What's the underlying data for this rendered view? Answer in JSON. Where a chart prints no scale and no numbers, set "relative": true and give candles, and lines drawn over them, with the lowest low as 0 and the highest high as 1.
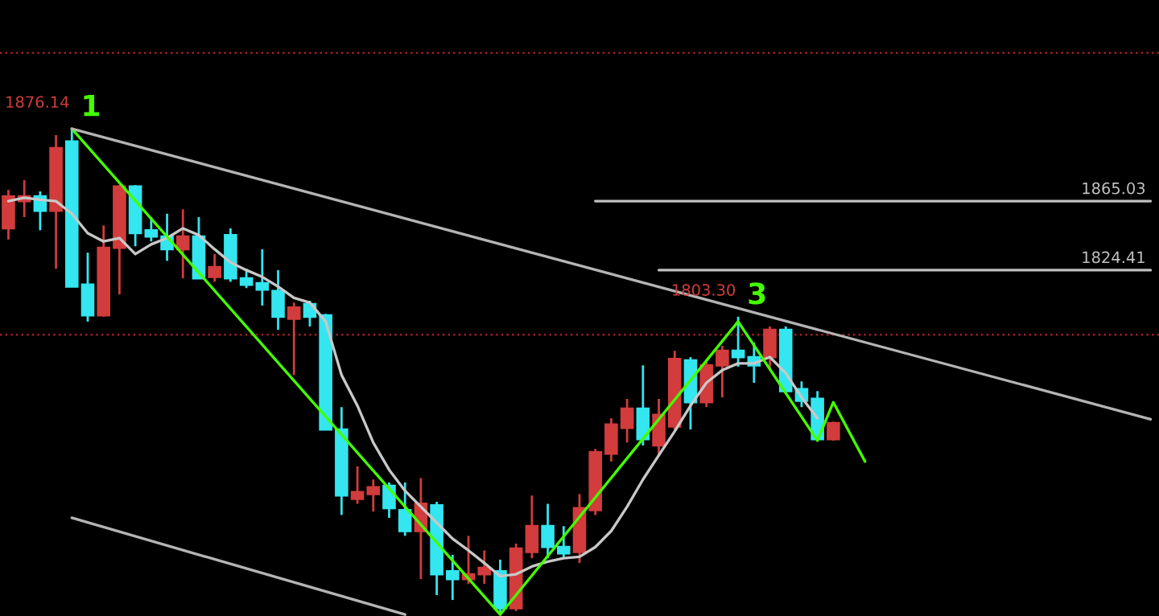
{
  "chart_data": {
    "type": "candlestick",
    "relative": true,
    "ylim": [
      -0.003,
      1.265
    ],
    "categories": [
      null,
      null,
      null,
      null,
      null,
      null,
      null,
      null,
      null,
      null,
      null,
      null,
      null,
      null,
      null,
      null,
      null,
      null,
      null,
      null,
      null,
      null,
      null,
      null,
      null,
      null,
      null,
      null,
      null,
      null,
      null,
      null,
      null,
      null,
      null,
      null,
      null,
      null,
      null,
      null,
      null,
      null,
      null,
      null,
      null,
      null,
      null,
      null,
      null,
      null,
      null,
      null,
      null,
      null,
      null,
      null,
      null,
      null,
      null,
      null,
      null,
      null,
      null,
      null,
      null,
      null,
      null,
      null,
      null,
      null,
      null,
      null,
      null
    ],
    "ohlc": [
      [
        0.795,
        0.874,
        0.772,
        0.861
      ],
      [
        0.851,
        0.894,
        0.818,
        0.861
      ],
      [
        0.861,
        0.871,
        0.791,
        0.831
      ],
      [
        0.831,
        0.987,
        0.712,
        0.96
      ],
      [
        0.974,
        1.0,
        0.675,
        0.675
      ],
      [
        0.679,
        0.745,
        0.603,
        0.616
      ],
      [
        0.616,
        0.801,
        0.613,
        0.755
      ],
      [
        0.755,
        0.884,
        0.659,
        0.881
      ],
      [
        0.881,
        0.884,
        0.758,
        0.785
      ],
      [
        0.791,
        0.818,
        0.768,
        0.778
      ],
      [
        0.778,
        0.825,
        0.728,
        0.752
      ],
      [
        0.752,
        0.834,
        0.692,
        0.778
      ],
      [
        0.778,
        0.818,
        0.692,
        0.692
      ],
      [
        0.695,
        0.742,
        0.685,
        0.715
      ],
      [
        0.781,
        0.795,
        0.685,
        0.692
      ],
      [
        0.692,
        0.712,
        0.672,
        0.679
      ],
      [
        0.682,
        0.752,
        0.636,
        0.669
      ],
      [
        0.666,
        0.709,
        0.586,
        0.613
      ],
      [
        0.609,
        0.642,
        0.493,
        0.632
      ],
      [
        0.639,
        0.646,
        0.593,
        0.613
      ],
      [
        0.616,
        0.619,
        0.381,
        0.381
      ],
      [
        0.381,
        0.427,
        0.205,
        0.245
      ],
      [
        0.238,
        0.305,
        0.228,
        0.252
      ],
      [
        0.248,
        0.278,
        0.212,
        0.262
      ],
      [
        0.265,
        0.272,
        0.199,
        0.219
      ],
      [
        0.215,
        0.272,
        0.162,
        0.172
      ],
      [
        0.172,
        0.281,
        0.073,
        0.228
      ],
      [
        0.225,
        0.232,
        0.04,
        0.083
      ],
      [
        0.089,
        0.123,
        0.03,
        0.073
      ],
      [
        0.073,
        0.162,
        0.063,
        0.083
      ],
      [
        0.083,
        0.132,
        0.063,
        0.096
      ],
      [
        0.089,
        0.113,
        0.0,
        0.013
      ],
      [
        0.013,
        0.146,
        0.007,
        0.136
      ],
      [
        0.129,
        0.245,
        0.116,
        0.182
      ],
      [
        0.182,
        0.228,
        0.116,
        0.139
      ],
      [
        0.139,
        0.182,
        0.116,
        0.126
      ],
      [
        0.129,
        0.248,
        0.106,
        0.219
      ],
      [
        0.215,
        0.341,
        0.205,
        0.334
      ],
      [
        0.331,
        0.404,
        0.315,
        0.391
      ],
      [
        0.384,
        0.444,
        0.354,
        0.424
      ],
      [
        0.424,
        0.513,
        0.348,
        0.361
      ],
      [
        0.348,
        0.444,
        0.328,
        0.411
      ],
      [
        0.387,
        0.543,
        0.381,
        0.526
      ],
      [
        0.523,
        0.53,
        0.381,
        0.437
      ],
      [
        0.437,
        0.52,
        0.427,
        0.513
      ],
      [
        0.513,
        0.553,
        0.447,
        0.543
      ],
      [
        0.543,
        0.613,
        0.51,
        0.53
      ],
      [
        0.53,
        0.56,
        0.477,
        0.513
      ],
      [
        0.53,
        0.593,
        0.503,
        0.586
      ],
      [
        0.586,
        0.593,
        0.454,
        0.46
      ],
      [
        0.464,
        0.48,
        0.427,
        0.44
      ],
      [
        0.444,
        0.46,
        0.361,
        0.361
      ],
      [
        0.361,
        0.397,
        0.358,
        0.394
      ],
      null,
      null,
      null,
      null,
      null,
      null,
      null,
      null,
      null,
      null,
      null,
      null,
      null,
      null,
      null,
      null,
      null,
      null,
      null,
      null
    ],
    "colors": [
      "#d23c3c",
      "#d23c3c",
      "#33e6f0",
      "#d23c3c",
      "#33e6f0",
      "#33e6f0",
      "#d23c3c",
      "#d23c3c",
      "#33e6f0",
      "#33e6f0",
      "#33e6f0",
      "#d23c3c",
      "#33e6f0",
      "#d23c3c",
      "#33e6f0",
      "#33e6f0",
      "#33e6f0",
      "#33e6f0",
      "#d23c3c",
      "#33e6f0",
      "#33e6f0",
      "#33e6f0",
      "#d23c3c",
      "#d23c3c",
      "#33e6f0",
      "#33e6f0",
      "#d23c3c",
      "#33e6f0",
      "#33e6f0",
      "#d23c3c",
      "#d23c3c",
      "#33e6f0",
      "#d23c3c",
      "#d23c3c",
      "#33e6f0",
      "#33e6f0",
      "#d23c3c",
      "#d23c3c",
      "#d23c3c",
      "#d23c3c",
      "#33e6f0",
      "#d23c3c",
      "#d23c3c",
      "#33e6f0",
      "#d23c3c",
      "#d23c3c",
      "#33e6f0",
      "#33e6f0",
      "#d23c3c",
      "#33e6f0",
      "#33e6f0",
      "#33e6f0",
      "#d23c3c",
      null,
      null,
      null,
      null,
      null,
      null,
      null,
      null,
      null,
      null,
      null,
      null,
      null,
      null,
      null,
      null,
      null,
      null,
      null,
      null
    ],
    "annotations": [
      "1876.14",
      {
        "text": "1",
        "y": 1.0
      },
      "1803.30",
      {
        "text": "3",
        "y": 0.613
      }
    ],
    "series": [
      {
        "type": "line",
        "color": "#c8c8c8",
        "values": [
          0.851,
          0.858,
          0.854,
          0.851,
          0.825,
          0.785,
          0.768,
          0.775,
          0.742,
          0.762,
          0.775,
          0.795,
          0.781,
          0.752,
          0.725,
          0.709,
          0.695,
          0.675,
          0.652,
          0.642,
          0.603,
          0.493,
          0.43,
          0.354,
          0.298,
          0.255,
          0.222,
          0.189,
          0.156,
          0.132,
          0.106,
          0.079,
          0.083,
          0.099,
          0.109,
          0.116,
          0.119,
          0.139,
          0.172,
          0.222,
          0.278,
          0.328,
          0.377,
          0.43,
          0.477,
          0.503,
          0.517,
          0.517,
          0.53,
          0.497,
          0.447,
          0.404,
          null,
          null,
          null,
          null,
          null,
          null,
          null,
          null,
          null,
          null,
          null,
          null,
          null,
          null,
          null,
          null,
          null,
          null,
          null,
          null,
          null
        ]
      },
      {
        "type": "line",
        "color": "#44ff00",
        "values": [
          null,
          null,
          null,
          null,
          1.0,
          null,
          null,
          null,
          null,
          null,
          null,
          null,
          null,
          null,
          null,
          null,
          null,
          null,
          null,
          null,
          null,
          null,
          null,
          null,
          null,
          null,
          null,
          null,
          null,
          null,
          null,
          0.0,
          null,
          null,
          null,
          null,
          null,
          null,
          null,
          null,
          null,
          null,
          null,
          null,
          null,
          null,
          0.603,
          null,
          null,
          null,
          null,
          0.358,
          0.437,
          null,
          0.315,
          null,
          null,
          null,
          null,
          null,
          null,
          null,
          null,
          null,
          null,
          null,
          null,
          null,
          null,
          null,
          null,
          null,
          null
        ]
      },
      {
        "type": "line",
        "color": "#b4b4b4",
        "values": [
          null,
          null,
          null,
          null,
          1.0,
          null,
          null,
          null,
          null,
          null,
          null,
          null,
          null,
          null,
          null,
          null,
          null,
          null,
          null,
          null,
          null,
          null,
          null,
          null,
          null,
          null,
          null,
          null,
          null,
          null,
          null,
          null,
          null,
          null,
          null,
          null,
          null,
          null,
          null,
          null,
          null,
          null,
          null,
          null,
          null,
          null,
          null,
          null,
          null,
          null,
          null,
          null,
          null,
          null,
          null,
          null,
          null,
          null,
          null,
          null,
          null,
          null,
          null,
          null,
          null,
          null,
          null,
          null,
          null,
          null,
          null,
          null,
          0.402
        ]
      },
      {
        "type": "line",
        "color": "#b4b4b4",
        "values": [
          null,
          null,
          null,
          null,
          0.199,
          null,
          null,
          null,
          null,
          null,
          null,
          null,
          null,
          null,
          null,
          null,
          null,
          null,
          null,
          null,
          null,
          null,
          null,
          null,
          null,
          0.0,
          null,
          null,
          null,
          null,
          null,
          null,
          null,
          null,
          null,
          null,
          null,
          null,
          null,
          null,
          null,
          null,
          null,
          null,
          null,
          null,
          null,
          null,
          null,
          null,
          null,
          null,
          null,
          null,
          null,
          null,
          null,
          null,
          null,
          null,
          null,
          null,
          null,
          null,
          null,
          null,
          null,
          null,
          null,
          null,
          null,
          null,
          null
        ]
      },
      {
        "type": "line",
        "name": "1865.03",
        "color": "#c0c0c0",
        "values": [
          null,
          null,
          null,
          null,
          null,
          null,
          null,
          null,
          null,
          null,
          null,
          null,
          null,
          null,
          null,
          null,
          null,
          null,
          null,
          null,
          null,
          null,
          null,
          null,
          null,
          null,
          null,
          null,
          null,
          null,
          null,
          null,
          null,
          null,
          null,
          null,
          null,
          0.851,
          null,
          null,
          null,
          null,
          null,
          null,
          null,
          null,
          null,
          null,
          null,
          null,
          null,
          null,
          null,
          null,
          null,
          null,
          null,
          null,
          null,
          null,
          null,
          null,
          null,
          null,
          null,
          null,
          null,
          null,
          null,
          null,
          null,
          null,
          0.851
        ]
      },
      {
        "type": "line",
        "name": "1824.41",
        "color": "#c0c0c0",
        "values": [
          null,
          null,
          null,
          null,
          null,
          null,
          null,
          null,
          null,
          null,
          null,
          null,
          null,
          null,
          null,
          null,
          null,
          null,
          null,
          null,
          null,
          null,
          null,
          null,
          null,
          null,
          null,
          null,
          null,
          null,
          null,
          null,
          null,
          null,
          null,
          null,
          null,
          null,
          null,
          null,
          null,
          0.709,
          null,
          null,
          null,
          null,
          null,
          null,
          null,
          null,
          null,
          null,
          null,
          null,
          null,
          null,
          null,
          null,
          null,
          null,
          null,
          null,
          null,
          null,
          null,
          null,
          null,
          null,
          null,
          null,
          null,
          null,
          0.709
        ]
      }
    ],
    "ref_lines": [
      {
        "axis": "y",
        "value": 0.576,
        "color": "#a01e1e",
        "line_style": "dotted"
      },
      {
        "axis": "y",
        "value": 1.156,
        "color": "#a01e1e",
        "line_style": "dotted"
      }
    ]
  }
}
